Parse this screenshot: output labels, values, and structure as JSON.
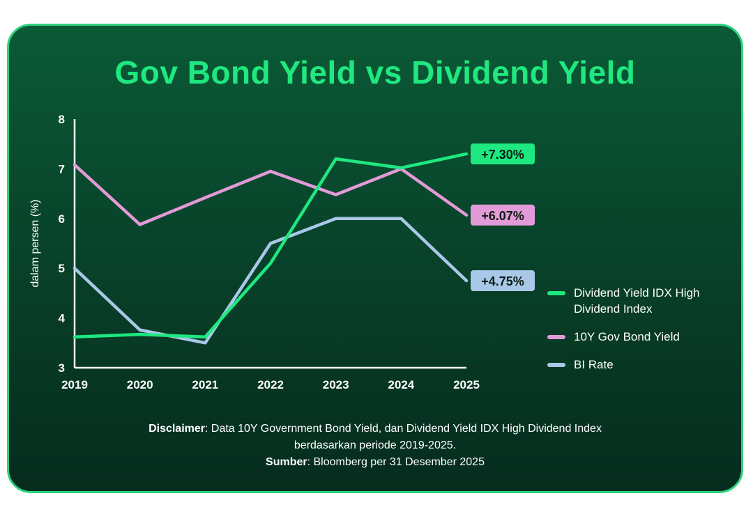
{
  "colors": {
    "background": "#0a4a2e",
    "border": "#2fd17d",
    "title": "#1ee87f",
    "dividend": "#1ee87f",
    "bond": "#e39ad8",
    "bi_rate": "#a9c8e8",
    "axis": "#ffffff"
  },
  "chart_data": {
    "type": "line",
    "title": "Gov Bond Yield vs Dividend Yield",
    "xlabel": "",
    "ylabel": "dalam persen (%)",
    "ylim": [
      3,
      8
    ],
    "yticks": [
      "3",
      "4",
      "5",
      "6",
      "7",
      "8"
    ],
    "x": [
      "2019",
      "2020",
      "2021",
      "2022",
      "2023",
      "2024",
      "2025"
    ],
    "series": [
      {
        "key": "dividend",
        "name": "Dividend Yield IDX High Dividend Index",
        "color": "#1ee87f",
        "values": [
          3.62,
          3.67,
          3.62,
          5.1,
          7.2,
          7.02,
          7.3
        ],
        "end_label": "+7.30%",
        "end_label_color": "#0b1a12"
      },
      {
        "key": "bond",
        "name": "10Y Gov Bond Yield",
        "color": "#e39ad8",
        "values": [
          7.08,
          5.88,
          6.42,
          6.95,
          6.48,
          7.0,
          6.07
        ],
        "end_label": "+6.07%",
        "end_label_color": "#0b1a12"
      },
      {
        "key": "bi_rate",
        "name": "BI Rate",
        "color": "#a9c8e8",
        "values": [
          5.0,
          3.76,
          3.5,
          5.5,
          6.0,
          6.0,
          4.75
        ],
        "end_label": "+4.75%",
        "end_label_color": "#0b1a12"
      }
    ],
    "legend": {
      "position": "right"
    }
  },
  "legend": {
    "items": [
      {
        "label": "Dividend Yield IDX High Dividend Index",
        "color": "#1ee87f"
      },
      {
        "label": "10Y Gov Bond Yield",
        "color": "#e39ad8"
      },
      {
        "label": "BI Rate",
        "color": "#a9c8e8"
      }
    ]
  },
  "footer": {
    "disclaimer_label": "Disclaimer",
    "disclaimer_text": ": Data 10Y Government Bond Yield, dan Dividend Yield IDX High Dividend Index",
    "disclaimer_text2": "berdasarkan periode 2019-2025.",
    "source_label": "Sumber",
    "source_text": ": Bloomberg per 31 Desember 2025"
  }
}
